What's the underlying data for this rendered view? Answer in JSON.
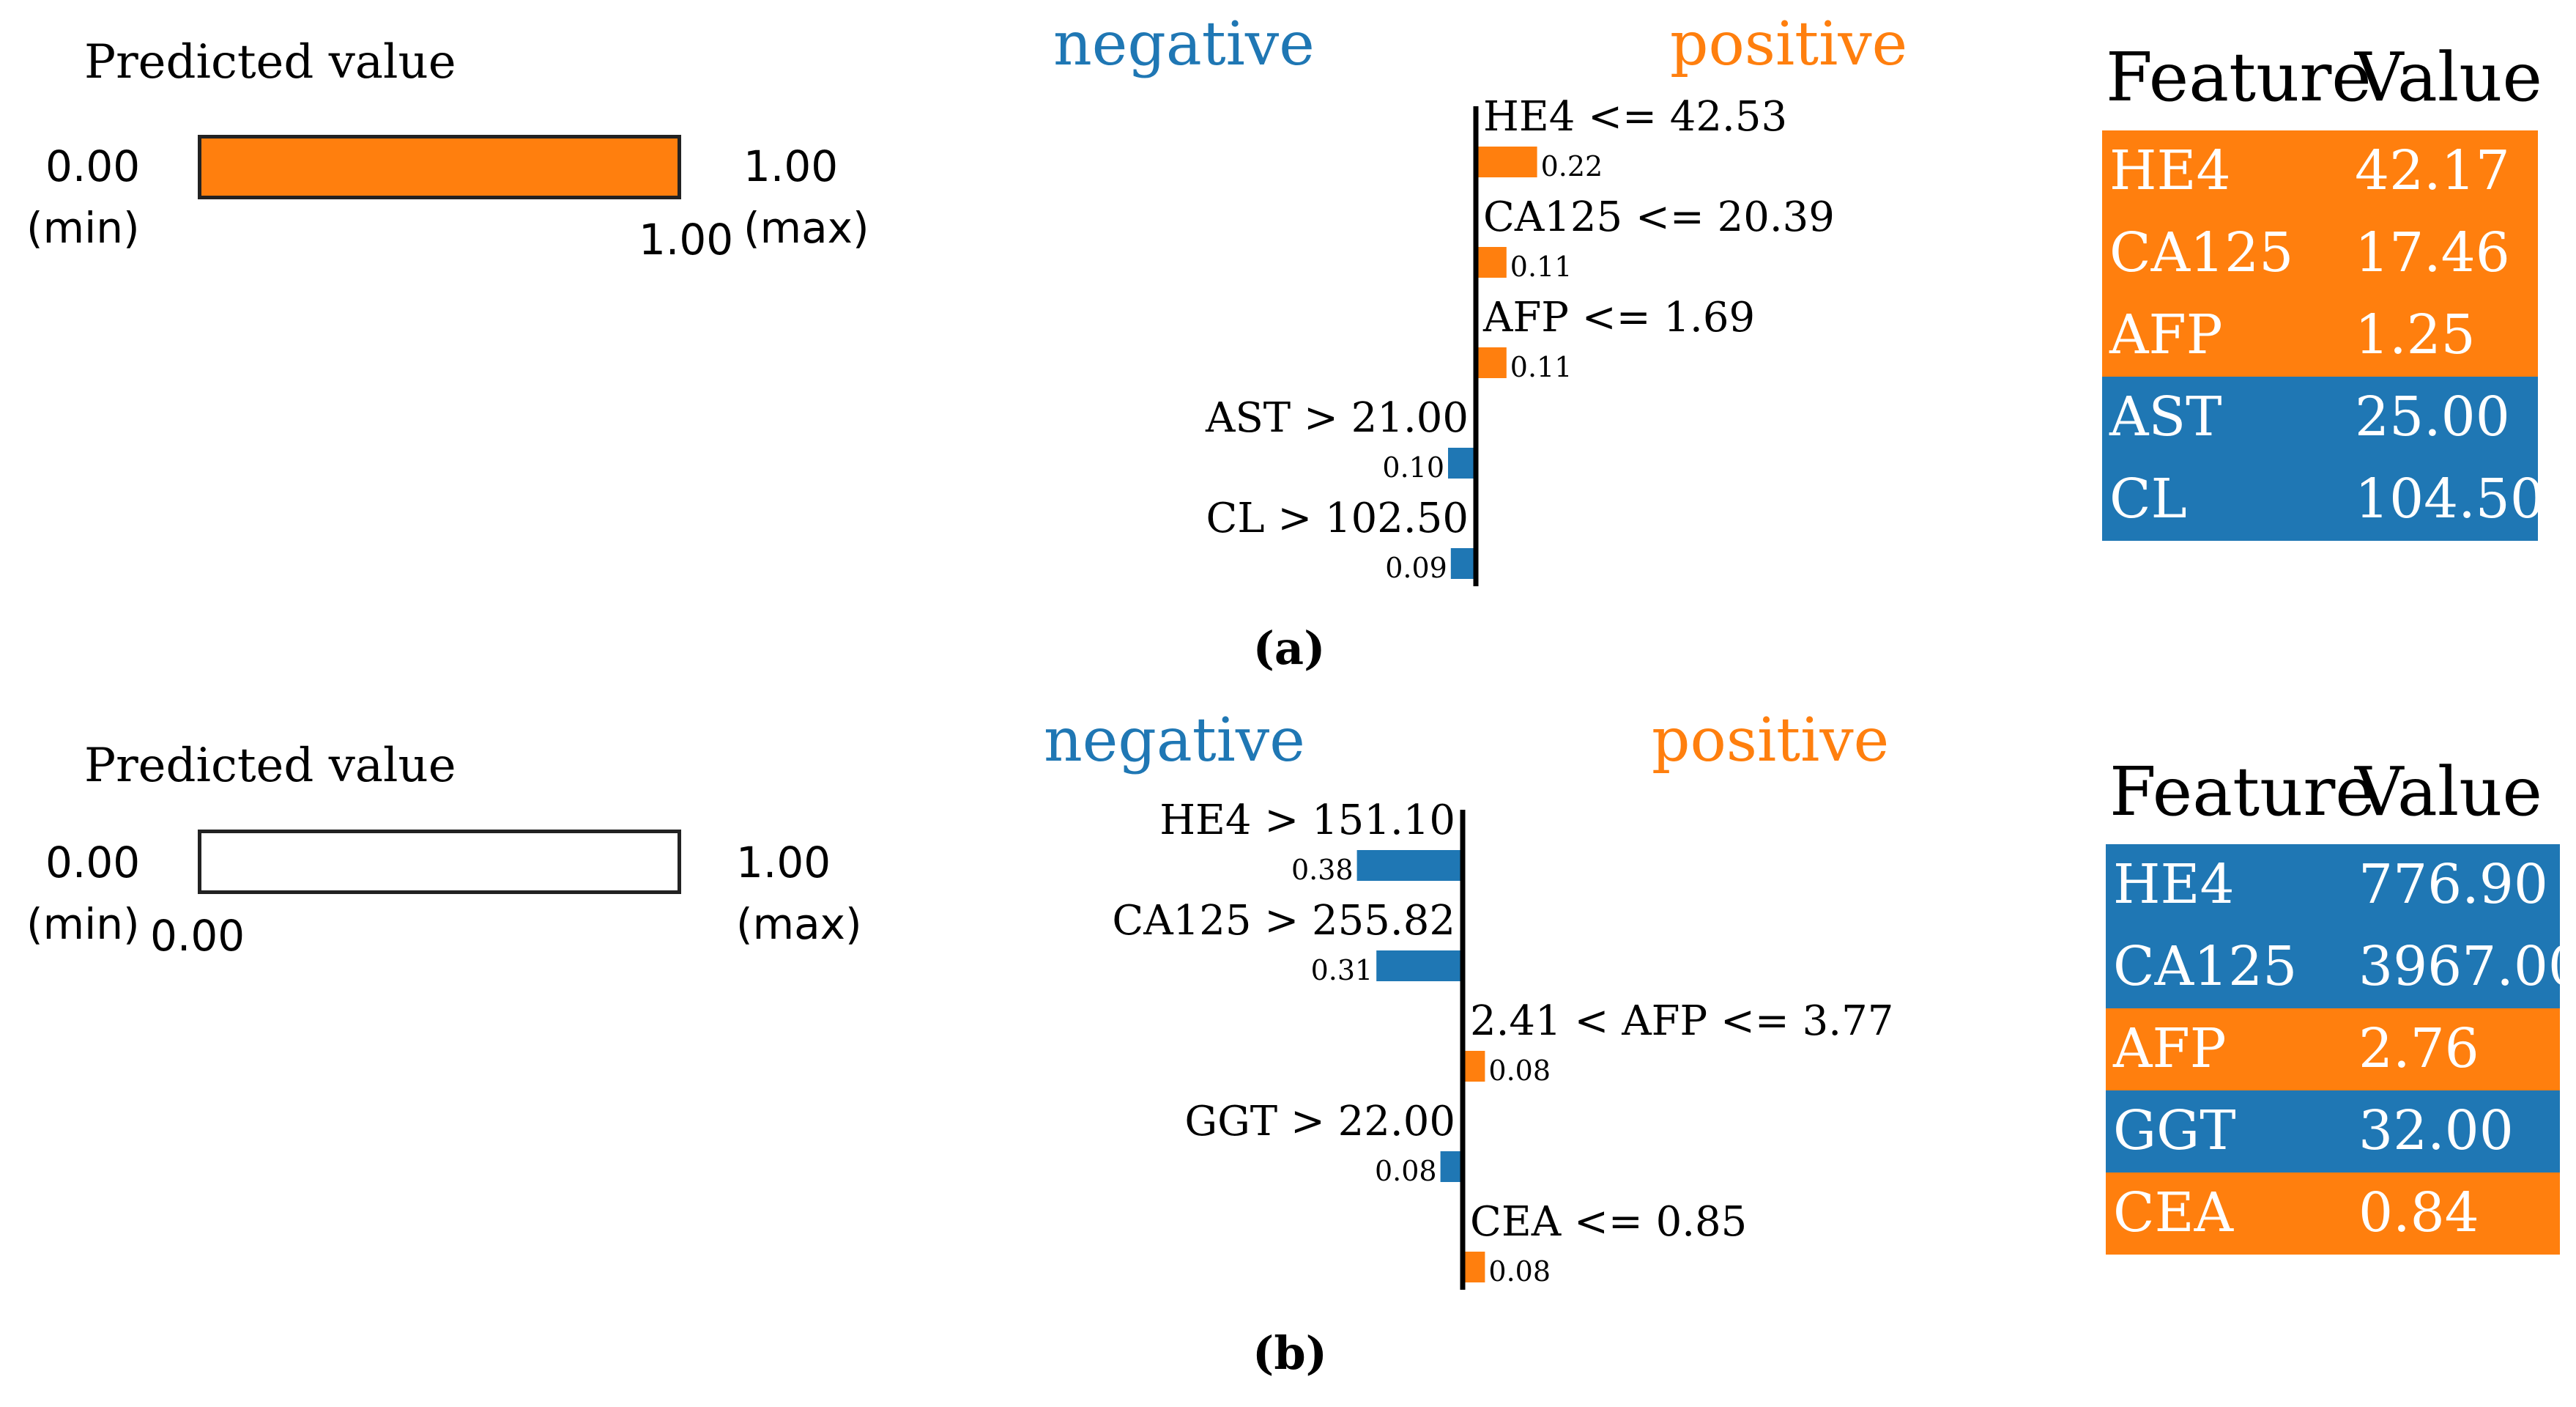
{
  "colors": {
    "positive": "#ff7f0e",
    "negative": "#1f77b4"
  },
  "chart_data": [
    {
      "type": "bar",
      "subtitle": "(a)",
      "predicted_value": {
        "title": "Predicted value",
        "min": "0.00",
        "min_label": "(min)",
        "max": "1.00",
        "max_label": "(max)",
        "value": 1.0,
        "value_label": "1.00"
      },
      "side_labels": {
        "negative": "negative",
        "positive": "positive"
      },
      "conditions": [
        {
          "label": "HE4 <= 42.53",
          "value": 0.22,
          "value_label": "0.22",
          "direction": "positive"
        },
        {
          "label": "CA125 <= 20.39",
          "value": 0.11,
          "value_label": "0.11",
          "direction": "positive"
        },
        {
          "label": "AFP <= 1.69",
          "value": 0.11,
          "value_label": "0.11",
          "direction": "positive"
        },
        {
          "label": "AST > 21.00",
          "value": 0.1,
          "value_label": "0.10",
          "direction": "negative"
        },
        {
          "label": "CL > 102.50",
          "value": 0.09,
          "value_label": "0.09",
          "direction": "negative"
        }
      ],
      "table": {
        "headers": [
          "Feature",
          "Value"
        ],
        "rows": [
          {
            "feature": "HE4",
            "value": "42.17",
            "direction": "positive"
          },
          {
            "feature": "CA125",
            "value": "17.46",
            "direction": "positive"
          },
          {
            "feature": "AFP",
            "value": "1.25",
            "direction": "positive"
          },
          {
            "feature": "AST",
            "value": "25.00",
            "direction": "negative"
          },
          {
            "feature": "CL",
            "value": "104.50",
            "direction": "negative"
          }
        ]
      }
    },
    {
      "type": "bar",
      "subtitle": "(b)",
      "predicted_value": {
        "title": "Predicted value",
        "min": "0.00",
        "min_label": "(min)",
        "max": "1.00",
        "max_label": "(max)",
        "value": 0.0,
        "value_label": "0.00"
      },
      "side_labels": {
        "negative": "negative",
        "positive": "positive"
      },
      "conditions": [
        {
          "label": "HE4 > 151.10",
          "value": 0.38,
          "value_label": "0.38",
          "direction": "negative"
        },
        {
          "label": "CA125 > 255.82",
          "value": 0.31,
          "value_label": "0.31",
          "direction": "negative"
        },
        {
          "label": "2.41 < AFP <= 3.77",
          "value": 0.08,
          "value_label": "0.08",
          "direction": "positive"
        },
        {
          "label": "GGT > 22.00",
          "value": 0.08,
          "value_label": "0.08",
          "direction": "negative"
        },
        {
          "label": "CEA <= 0.85",
          "value": 0.08,
          "value_label": "0.08",
          "direction": "positive"
        }
      ],
      "table": {
        "headers": [
          "Feature",
          "Value"
        ],
        "rows": [
          {
            "feature": "HE4",
            "value": "776.90",
            "direction": "negative"
          },
          {
            "feature": "CA125",
            "value": "3967.00",
            "direction": "negative"
          },
          {
            "feature": "AFP",
            "value": "2.76",
            "direction": "positive"
          },
          {
            "feature": "GGT",
            "value": "32.00",
            "direction": "negative"
          },
          {
            "feature": "CEA",
            "value": "0.84",
            "direction": "positive"
          }
        ]
      }
    }
  ]
}
